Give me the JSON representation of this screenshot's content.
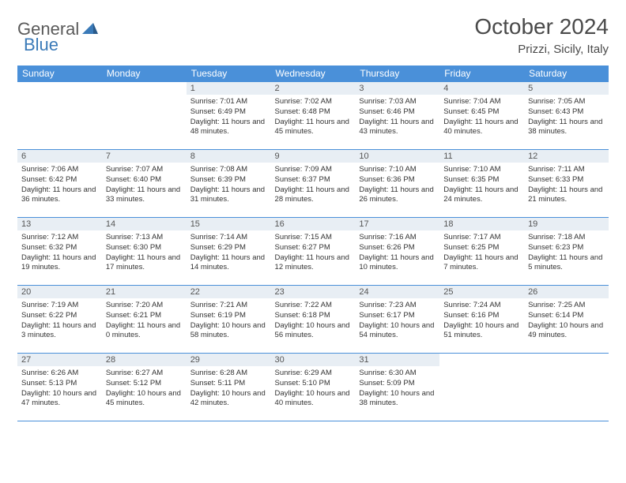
{
  "logo": {
    "text1": "General",
    "text2": "Blue"
  },
  "title": "October 2024",
  "location": "Prizzi, Sicily, Italy",
  "colors": {
    "header_bg": "#4a90d9",
    "header_text": "#ffffff",
    "daynum_bg": "#e8eef4",
    "border": "#4a90d9",
    "logo_gray": "#5a5a5a",
    "logo_blue": "#3a7ab8"
  },
  "dayNames": [
    "Sunday",
    "Monday",
    "Tuesday",
    "Wednesday",
    "Thursday",
    "Friday",
    "Saturday"
  ],
  "weeks": [
    [
      null,
      null,
      {
        "n": "1",
        "sr": "Sunrise: 7:01 AM",
        "ss": "Sunset: 6:49 PM",
        "dl": "Daylight: 11 hours and 48 minutes."
      },
      {
        "n": "2",
        "sr": "Sunrise: 7:02 AM",
        "ss": "Sunset: 6:48 PM",
        "dl": "Daylight: 11 hours and 45 minutes."
      },
      {
        "n": "3",
        "sr": "Sunrise: 7:03 AM",
        "ss": "Sunset: 6:46 PM",
        "dl": "Daylight: 11 hours and 43 minutes."
      },
      {
        "n": "4",
        "sr": "Sunrise: 7:04 AM",
        "ss": "Sunset: 6:45 PM",
        "dl": "Daylight: 11 hours and 40 minutes."
      },
      {
        "n": "5",
        "sr": "Sunrise: 7:05 AM",
        "ss": "Sunset: 6:43 PM",
        "dl": "Daylight: 11 hours and 38 minutes."
      }
    ],
    [
      {
        "n": "6",
        "sr": "Sunrise: 7:06 AM",
        "ss": "Sunset: 6:42 PM",
        "dl": "Daylight: 11 hours and 36 minutes."
      },
      {
        "n": "7",
        "sr": "Sunrise: 7:07 AM",
        "ss": "Sunset: 6:40 PM",
        "dl": "Daylight: 11 hours and 33 minutes."
      },
      {
        "n": "8",
        "sr": "Sunrise: 7:08 AM",
        "ss": "Sunset: 6:39 PM",
        "dl": "Daylight: 11 hours and 31 minutes."
      },
      {
        "n": "9",
        "sr": "Sunrise: 7:09 AM",
        "ss": "Sunset: 6:37 PM",
        "dl": "Daylight: 11 hours and 28 minutes."
      },
      {
        "n": "10",
        "sr": "Sunrise: 7:10 AM",
        "ss": "Sunset: 6:36 PM",
        "dl": "Daylight: 11 hours and 26 minutes."
      },
      {
        "n": "11",
        "sr": "Sunrise: 7:10 AM",
        "ss": "Sunset: 6:35 PM",
        "dl": "Daylight: 11 hours and 24 minutes."
      },
      {
        "n": "12",
        "sr": "Sunrise: 7:11 AM",
        "ss": "Sunset: 6:33 PM",
        "dl": "Daylight: 11 hours and 21 minutes."
      }
    ],
    [
      {
        "n": "13",
        "sr": "Sunrise: 7:12 AM",
        "ss": "Sunset: 6:32 PM",
        "dl": "Daylight: 11 hours and 19 minutes."
      },
      {
        "n": "14",
        "sr": "Sunrise: 7:13 AM",
        "ss": "Sunset: 6:30 PM",
        "dl": "Daylight: 11 hours and 17 minutes."
      },
      {
        "n": "15",
        "sr": "Sunrise: 7:14 AM",
        "ss": "Sunset: 6:29 PM",
        "dl": "Daylight: 11 hours and 14 minutes."
      },
      {
        "n": "16",
        "sr": "Sunrise: 7:15 AM",
        "ss": "Sunset: 6:27 PM",
        "dl": "Daylight: 11 hours and 12 minutes."
      },
      {
        "n": "17",
        "sr": "Sunrise: 7:16 AM",
        "ss": "Sunset: 6:26 PM",
        "dl": "Daylight: 11 hours and 10 minutes."
      },
      {
        "n": "18",
        "sr": "Sunrise: 7:17 AM",
        "ss": "Sunset: 6:25 PM",
        "dl": "Daylight: 11 hours and 7 minutes."
      },
      {
        "n": "19",
        "sr": "Sunrise: 7:18 AM",
        "ss": "Sunset: 6:23 PM",
        "dl": "Daylight: 11 hours and 5 minutes."
      }
    ],
    [
      {
        "n": "20",
        "sr": "Sunrise: 7:19 AM",
        "ss": "Sunset: 6:22 PM",
        "dl": "Daylight: 11 hours and 3 minutes."
      },
      {
        "n": "21",
        "sr": "Sunrise: 7:20 AM",
        "ss": "Sunset: 6:21 PM",
        "dl": "Daylight: 11 hours and 0 minutes."
      },
      {
        "n": "22",
        "sr": "Sunrise: 7:21 AM",
        "ss": "Sunset: 6:19 PM",
        "dl": "Daylight: 10 hours and 58 minutes."
      },
      {
        "n": "23",
        "sr": "Sunrise: 7:22 AM",
        "ss": "Sunset: 6:18 PM",
        "dl": "Daylight: 10 hours and 56 minutes."
      },
      {
        "n": "24",
        "sr": "Sunrise: 7:23 AM",
        "ss": "Sunset: 6:17 PM",
        "dl": "Daylight: 10 hours and 54 minutes."
      },
      {
        "n": "25",
        "sr": "Sunrise: 7:24 AM",
        "ss": "Sunset: 6:16 PM",
        "dl": "Daylight: 10 hours and 51 minutes."
      },
      {
        "n": "26",
        "sr": "Sunrise: 7:25 AM",
        "ss": "Sunset: 6:14 PM",
        "dl": "Daylight: 10 hours and 49 minutes."
      }
    ],
    [
      {
        "n": "27",
        "sr": "Sunrise: 6:26 AM",
        "ss": "Sunset: 5:13 PM",
        "dl": "Daylight: 10 hours and 47 minutes."
      },
      {
        "n": "28",
        "sr": "Sunrise: 6:27 AM",
        "ss": "Sunset: 5:12 PM",
        "dl": "Daylight: 10 hours and 45 minutes."
      },
      {
        "n": "29",
        "sr": "Sunrise: 6:28 AM",
        "ss": "Sunset: 5:11 PM",
        "dl": "Daylight: 10 hours and 42 minutes."
      },
      {
        "n": "30",
        "sr": "Sunrise: 6:29 AM",
        "ss": "Sunset: 5:10 PM",
        "dl": "Daylight: 10 hours and 40 minutes."
      },
      {
        "n": "31",
        "sr": "Sunrise: 6:30 AM",
        "ss": "Sunset: 5:09 PM",
        "dl": "Daylight: 10 hours and 38 minutes."
      },
      null,
      null
    ]
  ]
}
